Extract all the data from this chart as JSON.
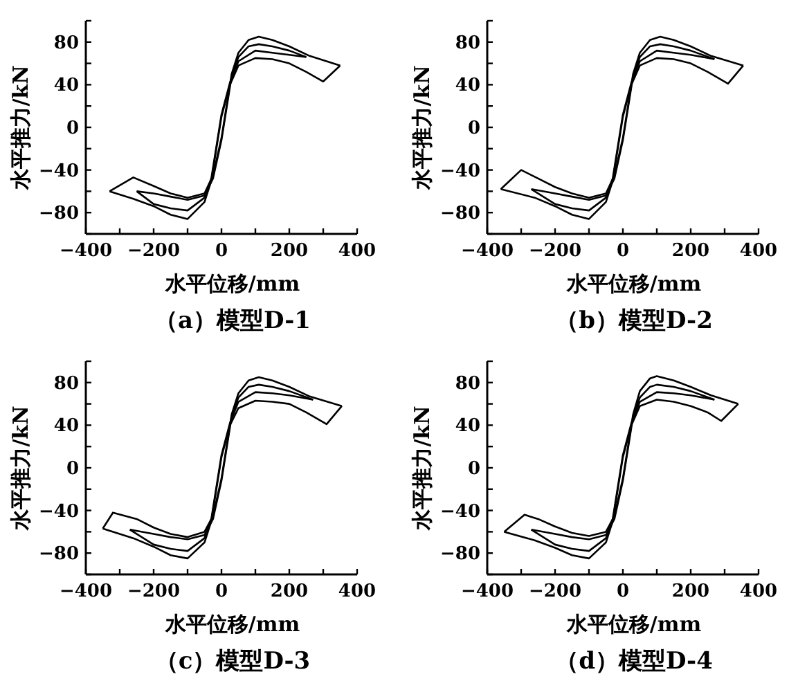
{
  "chart_data": [
    {
      "type": "line",
      "title": "（a）模型D-1",
      "xlabel": "水平位移/mm",
      "ylabel": "水平推力/kN",
      "xlim": [
        -400,
        400
      ],
      "ylim": [
        -100,
        100
      ],
      "xticks": [
        -400,
        {
          "value": -300,
          "label": null
        },
        -200,
        {
          "value": -100,
          "label": null
        },
        0,
        {
          "value": 100,
          "label": null
        },
        200,
        {
          "value": 300,
          "label": null
        },
        400
      ],
      "yticks": [
        {
          "value": -100,
          "label": null
        },
        -80,
        {
          "value": -60,
          "label": null
        },
        -40,
        {
          "value": -20,
          "label": null
        },
        0,
        {
          "value": 20,
          "label": null
        },
        40,
        {
          "value": 60,
          "label": null
        },
        80,
        {
          "value": 100,
          "label": null
        }
      ],
      "grid": false,
      "marker": "none",
      "line_style": "solid",
      "series": [
        {
          "color": "#000000",
          "x": [
            -330,
            -260,
            -200,
            -150,
            -100,
            -50,
            -25,
            0,
            15,
            30,
            50,
            80,
            110,
            150,
            200,
            260,
            350
          ],
          "values": [
            -60,
            -47,
            -55,
            -62,
            -66,
            -62,
            -45,
            -10,
            20,
            50,
            70,
            82,
            85,
            82,
            76,
            67,
            58
          ]
        },
        {
          "color": "#000000",
          "x": [
            350,
            300,
            250,
            200,
            150,
            100,
            50,
            25,
            0,
            -15,
            -30,
            -50,
            -100,
            -150,
            -200,
            -260,
            -330
          ],
          "values": [
            58,
            43,
            52,
            60,
            64,
            65,
            58,
            40,
            10,
            -20,
            -50,
            -70,
            -86,
            -82,
            -74,
            -67,
            -60
          ]
        },
        {
          "color": "#000000",
          "x": [
            -250,
            -200,
            -150,
            -100,
            -50,
            -25,
            0,
            15,
            30,
            50,
            80,
            110,
            150,
            200,
            250
          ],
          "values": [
            -60,
            -62,
            -65,
            -68,
            -64,
            -48,
            -12,
            18,
            48,
            66,
            76,
            78,
            76,
            72,
            66
          ]
        },
        {
          "color": "#000000",
          "x": [
            250,
            200,
            150,
            100,
            50,
            25,
            0,
            -15,
            -30,
            -50,
            -100,
            -150,
            -200,
            -250
          ],
          "values": [
            66,
            68,
            70,
            72,
            62,
            42,
            12,
            -18,
            -48,
            -66,
            -78,
            -76,
            -72,
            -60
          ]
        }
      ]
    },
    {
      "type": "line",
      "title": "（b）模型D-2",
      "xlabel": "水平位移/mm",
      "ylabel": "水平推力/kN",
      "xlim": [
        -400,
        400
      ],
      "ylim": [
        -100,
        100
      ],
      "xticks": [
        -400,
        {
          "value": -300,
          "label": null
        },
        -200,
        {
          "value": -100,
          "label": null
        },
        0,
        {
          "value": 100,
          "label": null
        },
        200,
        {
          "value": 300,
          "label": null
        },
        400
      ],
      "yticks": [
        {
          "value": -100,
          "label": null
        },
        -80,
        {
          "value": -60,
          "label": null
        },
        -40,
        {
          "value": -20,
          "label": null
        },
        0,
        {
          "value": 20,
          "label": null
        },
        40,
        {
          "value": 60,
          "label": null
        },
        80,
        {
          "value": 100,
          "label": null
        }
      ],
      "grid": false,
      "marker": "none",
      "line_style": "solid",
      "series": [
        {
          "color": "#000000",
          "x": [
            -360,
            -300,
            -250,
            -200,
            -150,
            -100,
            -50,
            -25,
            0,
            15,
            30,
            50,
            80,
            110,
            150,
            200,
            260,
            355
          ],
          "values": [
            -58,
            -40,
            -48,
            -56,
            -62,
            -66,
            -62,
            -45,
            -10,
            20,
            50,
            70,
            82,
            85,
            82,
            76,
            67,
            58
          ]
        },
        {
          "color": "#000000",
          "x": [
            355,
            310,
            250,
            200,
            150,
            100,
            50,
            25,
            0,
            -15,
            -30,
            -50,
            -100,
            -150,
            -200,
            -260,
            -360
          ],
          "values": [
            58,
            41,
            52,
            60,
            64,
            65,
            58,
            40,
            10,
            -20,
            -50,
            -70,
            -86,
            -82,
            -74,
            -66,
            -58
          ]
        },
        {
          "color": "#000000",
          "x": [
            -270,
            -200,
            -150,
            -100,
            -50,
            -25,
            0,
            15,
            30,
            50,
            80,
            110,
            150,
            200,
            270
          ],
          "values": [
            -58,
            -62,
            -65,
            -68,
            -64,
            -48,
            -12,
            18,
            48,
            66,
            76,
            78,
            76,
            72,
            64
          ]
        },
        {
          "color": "#000000",
          "x": [
            270,
            200,
            150,
            100,
            50,
            25,
            0,
            -15,
            -30,
            -50,
            -100,
            -150,
            -200,
            -270
          ],
          "values": [
            64,
            68,
            70,
            72,
            62,
            42,
            12,
            -18,
            -48,
            -66,
            -78,
            -76,
            -72,
            -58
          ]
        }
      ]
    },
    {
      "type": "line",
      "title": "（c）模型D-3",
      "xlabel": "水平位移/mm",
      "ylabel": "水平推力/kN",
      "xlim": [
        -400,
        400
      ],
      "ylim": [
        -100,
        100
      ],
      "xticks": [
        -400,
        {
          "value": -300,
          "label": null
        },
        -200,
        {
          "value": -100,
          "label": null
        },
        0,
        {
          "value": 100,
          "label": null
        },
        200,
        {
          "value": 300,
          "label": null
        },
        400
      ],
      "yticks": [
        {
          "value": -100,
          "label": null
        },
        -80,
        {
          "value": -60,
          "label": null
        },
        -40,
        {
          "value": -20,
          "label": null
        },
        0,
        {
          "value": 20,
          "label": null
        },
        40,
        {
          "value": 60,
          "label": null
        },
        80,
        {
          "value": 100,
          "label": null
        }
      ],
      "grid": false,
      "marker": "none",
      "line_style": "solid",
      "series": [
        {
          "color": "#000000",
          "x": [
            -350,
            -320,
            -250,
            -200,
            -150,
            -100,
            -50,
            -25,
            0,
            15,
            30,
            50,
            80,
            110,
            150,
            200,
            260,
            355
          ],
          "values": [
            -57,
            -42,
            -48,
            -56,
            -62,
            -65,
            -60,
            -45,
            -10,
            20,
            50,
            70,
            82,
            85,
            82,
            76,
            67,
            58
          ]
        },
        {
          "color": "#000000",
          "x": [
            355,
            310,
            250,
            200,
            150,
            100,
            50,
            25,
            0,
            -15,
            -30,
            -50,
            -100,
            -150,
            -200,
            -260,
            -350
          ],
          "values": [
            58,
            41,
            52,
            60,
            62,
            63,
            56,
            40,
            10,
            -20,
            -50,
            -70,
            -85,
            -82,
            -74,
            -66,
            -57
          ]
        },
        {
          "color": "#000000",
          "x": [
            -270,
            -200,
            -150,
            -100,
            -50,
            -25,
            0,
            15,
            30,
            50,
            80,
            110,
            150,
            200,
            270
          ],
          "values": [
            -58,
            -62,
            -65,
            -67,
            -63,
            -48,
            -12,
            18,
            48,
            66,
            76,
            78,
            76,
            72,
            64
          ]
        },
        {
          "color": "#000000",
          "x": [
            270,
            200,
            150,
            100,
            50,
            25,
            0,
            -15,
            -30,
            -50,
            -100,
            -150,
            -200,
            -270
          ],
          "values": [
            64,
            68,
            70,
            71,
            62,
            42,
            12,
            -18,
            -48,
            -66,
            -78,
            -76,
            -72,
            -58
          ]
        }
      ]
    },
    {
      "type": "line",
      "title": "（d）模型D-4",
      "xlabel": "水平位移/mm",
      "ylabel": "水平推力/kN",
      "xlim": [
        -400,
        400
      ],
      "ylim": [
        -100,
        100
      ],
      "xticks": [
        -400,
        {
          "value": -300,
          "label": null
        },
        -200,
        {
          "value": -100,
          "label": null
        },
        0,
        {
          "value": 100,
          "label": null
        },
        200,
        {
          "value": 300,
          "label": null
        },
        400
      ],
      "yticks": [
        {
          "value": -100,
          "label": null
        },
        -80,
        {
          "value": -60,
          "label": null
        },
        -40,
        {
          "value": -20,
          "label": null
        },
        0,
        {
          "value": 20,
          "label": null
        },
        40,
        {
          "value": 60,
          "label": null
        },
        80,
        {
          "value": 100,
          "label": null
        }
      ],
      "grid": false,
      "marker": "none",
      "line_style": "solid",
      "series": [
        {
          "color": "#000000",
          "x": [
            -350,
            -290,
            -250,
            -200,
            -150,
            -100,
            -50,
            -25,
            0,
            15,
            30,
            50,
            80,
            100,
            150,
            200,
            260,
            340
          ],
          "values": [
            -60,
            -44,
            -48,
            -55,
            -61,
            -64,
            -60,
            -45,
            -10,
            20,
            50,
            72,
            84,
            86,
            82,
            76,
            68,
            60
          ]
        },
        {
          "color": "#000000",
          "x": [
            340,
            290,
            250,
            200,
            150,
            100,
            50,
            25,
            0,
            -15,
            -30,
            -50,
            -100,
            -150,
            -200,
            -260,
            -350
          ],
          "values": [
            60,
            44,
            52,
            58,
            62,
            64,
            58,
            40,
            10,
            -20,
            -50,
            -70,
            -85,
            -82,
            -75,
            -68,
            -60
          ]
        },
        {
          "color": "#000000",
          "x": [
            -270,
            -200,
            -150,
            -100,
            -50,
            -25,
            0,
            15,
            30,
            50,
            80,
            100,
            150,
            200,
            270
          ],
          "values": [
            -58,
            -62,
            -65,
            -67,
            -63,
            -48,
            -12,
            18,
            48,
            66,
            76,
            78,
            76,
            72,
            64
          ]
        },
        {
          "color": "#000000",
          "x": [
            270,
            200,
            150,
            100,
            50,
            25,
            0,
            -15,
            -30,
            -50,
            -100,
            -150,
            -200,
            -270
          ],
          "values": [
            64,
            68,
            70,
            71,
            62,
            42,
            12,
            -18,
            -48,
            -66,
            -78,
            -76,
            -72,
            -58
          ]
        }
      ]
    }
  ]
}
